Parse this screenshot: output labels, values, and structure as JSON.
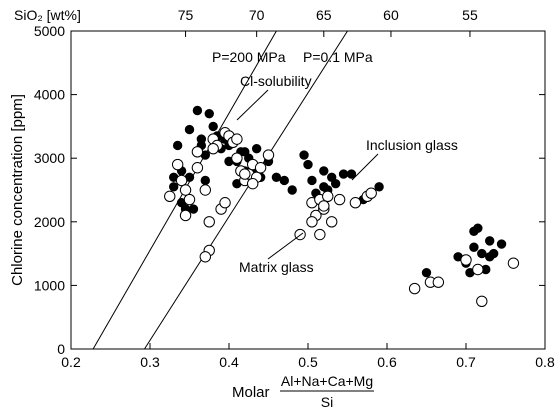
{
  "chart_data": {
    "type": "scatter",
    "xlabel_prefix": "Molar",
    "xlabel_numerator": "Al+Na+Ca+Mg",
    "xlabel_denominator": "Si",
    "ylabel": "Chlorine concentration [ppm]",
    "xlim": [
      0.2,
      0.8
    ],
    "ylim": [
      0,
      5000
    ],
    "x_ticks": [
      "0.2",
      "0.3",
      "0.4",
      "0.5",
      "0.6",
      "0.7",
      "0.8"
    ],
    "y_ticks": [
      "0",
      "1000",
      "2000",
      "3000",
      "4000",
      "5000"
    ],
    "top_axis": {
      "label": "SiO₂ [wt%]",
      "ticks": [
        {
          "label": "75",
          "x": 0.345
        },
        {
          "label": "70",
          "x": 0.435
        },
        {
          "label": "65",
          "x": 0.52
        },
        {
          "label": "60",
          "x": 0.605
        },
        {
          "label": "55",
          "x": 0.705
        }
      ]
    },
    "lines": [
      {
        "name": "P=200 MPa",
        "x": [
          0.228,
          0.46
        ],
        "y": [
          0,
          5000
        ]
      },
      {
        "name": "P=0.1 MPa",
        "x": [
          0.293,
          0.55
        ],
        "y": [
          0,
          5000
        ]
      }
    ],
    "annotations": [
      {
        "text": "P=200 MPa"
      },
      {
        "text": "P=0.1 MPa"
      },
      {
        "text": "Cl-solubility"
      },
      {
        "text": "Inclusion glass"
      },
      {
        "text": "Matrix glass"
      }
    ],
    "series": [
      {
        "name": "Inclusion glass",
        "marker": "filled",
        "x": [
          0.33,
          0.335,
          0.34,
          0.345,
          0.35,
          0.36,
          0.365,
          0.37,
          0.375,
          0.38,
          0.385,
          0.39,
          0.395,
          0.4,
          0.405,
          0.41,
          0.415,
          0.42,
          0.425,
          0.43,
          0.435,
          0.44,
          0.45,
          0.46,
          0.47,
          0.48,
          0.495,
          0.5,
          0.505,
          0.51,
          0.52,
          0.525,
          0.53,
          0.535,
          0.545,
          0.555,
          0.57,
          0.59,
          0.65,
          0.69,
          0.7,
          0.705,
          0.71,
          0.715,
          0.72,
          0.725,
          0.73,
          0.735,
          0.745,
          0.34,
          0.355,
          0.38,
          0.37,
          0.39,
          0.4,
          0.42,
          0.43,
          0.33,
          0.35,
          0.365,
          0.41,
          0.44,
          0.52,
          0.71,
          0.73
        ],
        "y": [
          2550,
          3200,
          2300,
          2200,
          2700,
          3750,
          3300,
          3050,
          3700,
          3500,
          3350,
          3150,
          3300,
          3200,
          3250,
          2950,
          3100,
          2800,
          3000,
          2850,
          3150,
          2700,
          2950,
          2700,
          2650,
          2500,
          3050,
          2900,
          2650,
          2450,
          2800,
          2500,
          2700,
          2600,
          2750,
          2750,
          2350,
          2550,
          1200,
          1450,
          1350,
          1200,
          1600,
          1900,
          1500,
          1250,
          1700,
          1500,
          1650,
          2800,
          2200,
          3300,
          2650,
          3350,
          2950,
          3100,
          2750,
          2700,
          3450,
          3200,
          2600,
          2700,
          2550,
          1850,
          1450
        ]
      },
      {
        "name": "Matrix glass",
        "marker": "open",
        "x": [
          0.325,
          0.335,
          0.34,
          0.345,
          0.35,
          0.36,
          0.37,
          0.375,
          0.38,
          0.385,
          0.39,
          0.395,
          0.4,
          0.405,
          0.41,
          0.415,
          0.42,
          0.425,
          0.43,
          0.435,
          0.44,
          0.45,
          0.49,
          0.505,
          0.51,
          0.515,
          0.52,
          0.525,
          0.53,
          0.54,
          0.56,
          0.575,
          0.58,
          0.635,
          0.655,
          0.665,
          0.7,
          0.715,
          0.72,
          0.76,
          0.37,
          0.375,
          0.345,
          0.36,
          0.38,
          0.395,
          0.41,
          0.42,
          0.43,
          0.505,
          0.515,
          0.52
        ],
        "y": [
          2400,
          2900,
          2650,
          2100,
          2350,
          2850,
          2500,
          1550,
          3300,
          3200,
          2200,
          3400,
          3350,
          3250,
          3000,
          2800,
          2650,
          2750,
          2900,
          2700,
          2850,
          3050,
          1800,
          2300,
          2100,
          2350,
          2200,
          2400,
          2000,
          2350,
          2300,
          2400,
          2450,
          950,
          1050,
          1050,
          1400,
          1250,
          750,
          1350,
          1450,
          2000,
          2500,
          3100,
          3150,
          2300,
          3300,
          2750,
          2600,
          2000,
          1800,
          2250
        ]
      }
    ]
  }
}
